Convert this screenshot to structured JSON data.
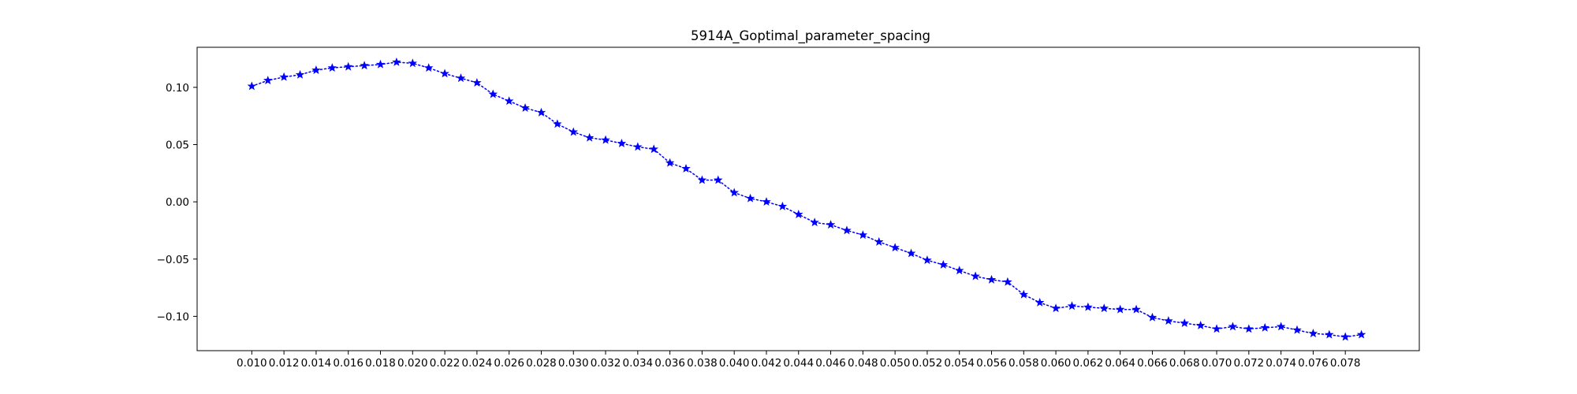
{
  "chart_data": {
    "type": "line",
    "title": "5914A_Goptimal_parameter_spacing",
    "xlabel": "",
    "ylabel": "",
    "x_ticks": [
      "0.010",
      "0.012",
      "0.014",
      "0.016",
      "0.018",
      "0.020",
      "0.022",
      "0.024",
      "0.026",
      "0.028",
      "0.030",
      "0.032",
      "0.034",
      "0.036",
      "0.038",
      "0.040",
      "0.042",
      "0.044",
      "0.046",
      "0.048",
      "0.050",
      "0.052",
      "0.054",
      "0.056",
      "0.058",
      "0.060",
      "0.062",
      "0.064",
      "0.066",
      "0.068",
      "0.070",
      "0.072",
      "0.074",
      "0.076",
      "0.078"
    ],
    "y_ticks": [
      "0.10",
      "0.05",
      "0.00",
      "−0.05",
      "−0.10"
    ],
    "y_tick_values": [
      0.1,
      0.05,
      0.0,
      -0.05,
      -0.1
    ],
    "xlim": [
      0.0066,
      0.0826
    ],
    "ylim": [
      -0.13,
      0.135
    ],
    "grid": false,
    "legend": "none",
    "series": [
      {
        "color": "#0000ff",
        "marker": "star",
        "linestyle": "dotted",
        "x": [
          0.01,
          0.011,
          0.012,
          0.013,
          0.014,
          0.015,
          0.016,
          0.017,
          0.018,
          0.019,
          0.02,
          0.021,
          0.022,
          0.023,
          0.024,
          0.025,
          0.026,
          0.027,
          0.028,
          0.029,
          0.03,
          0.031,
          0.032,
          0.033,
          0.034,
          0.035,
          0.036,
          0.037,
          0.038,
          0.039,
          0.04,
          0.041,
          0.042,
          0.043,
          0.044,
          0.045,
          0.046,
          0.047,
          0.048,
          0.049,
          0.05,
          0.051,
          0.052,
          0.053,
          0.054,
          0.055,
          0.056,
          0.057,
          0.058,
          0.059,
          0.06,
          0.061,
          0.062,
          0.063,
          0.064,
          0.065,
          0.066,
          0.067,
          0.068,
          0.069,
          0.07,
          0.071,
          0.072,
          0.073,
          0.074,
          0.075,
          0.076,
          0.077,
          0.078,
          0.079
        ],
        "y": [
          0.101,
          0.106,
          0.109,
          0.111,
          0.115,
          0.117,
          0.118,
          0.119,
          0.12,
          0.122,
          0.121,
          0.117,
          0.112,
          0.108,
          0.104,
          0.094,
          0.088,
          0.082,
          0.078,
          0.068,
          0.061,
          0.056,
          0.054,
          0.051,
          0.048,
          0.046,
          0.034,
          0.029,
          0.019,
          0.019,
          0.008,
          0.003,
          0.0,
          -0.004,
          -0.011,
          -0.018,
          -0.02,
          -0.025,
          -0.029,
          -0.035,
          -0.04,
          -0.045,
          -0.051,
          -0.055,
          -0.06,
          -0.065,
          -0.068,
          -0.07,
          -0.081,
          -0.088,
          -0.093,
          -0.091,
          -0.092,
          -0.093,
          -0.094,
          -0.094,
          -0.101,
          -0.104,
          -0.106,
          -0.108,
          -0.111,
          -0.109,
          -0.111,
          -0.11,
          -0.109,
          -0.112,
          -0.115,
          -0.116,
          -0.118,
          -0.116
        ]
      }
    ]
  }
}
